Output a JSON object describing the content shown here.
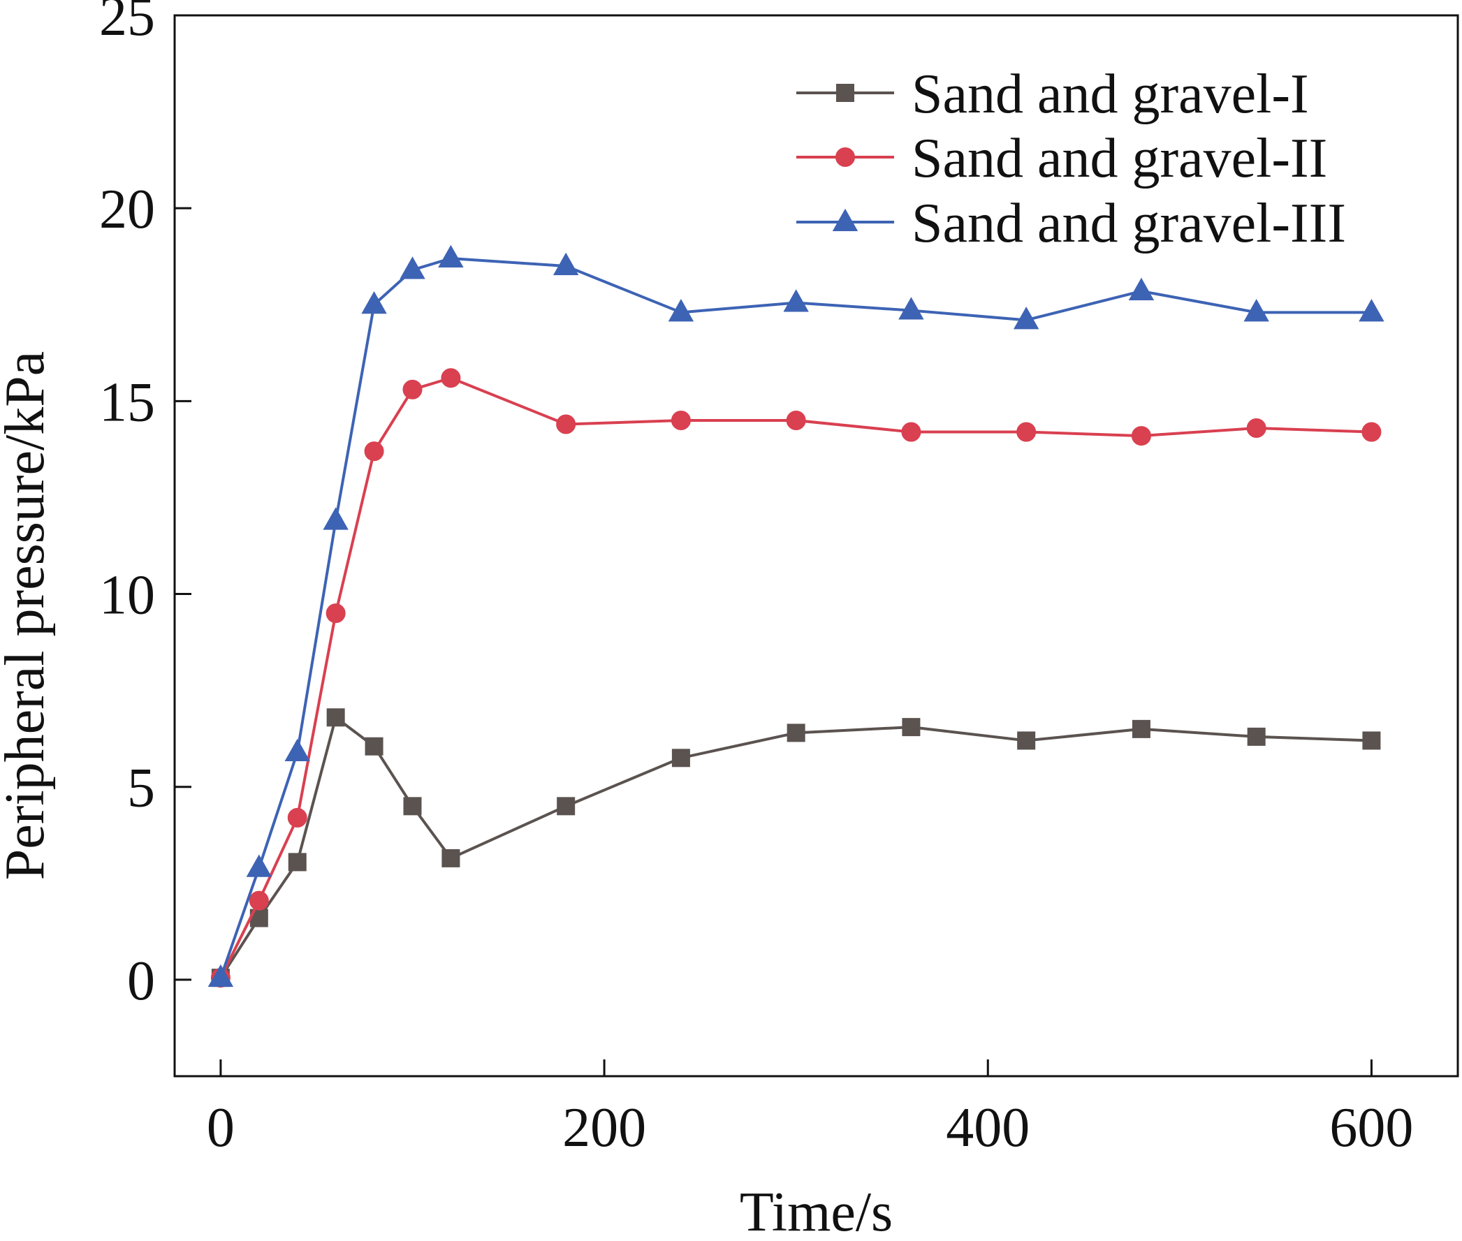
{
  "chart_data": {
    "type": "line",
    "title": "",
    "xlabel": "Time/s",
    "ylabel": "Peripheral pressure/kPa",
    "xlim": [
      -24,
      645
    ],
    "ylim": [
      -2.5,
      25
    ],
    "xticks": [
      0,
      200,
      400,
      600
    ],
    "xtick_labels": [
      "0",
      "200",
      "400",
      "600"
    ],
    "yticks": [
      0,
      5,
      10,
      15,
      20,
      25
    ],
    "ytick_labels": [
      "0",
      "5",
      "10",
      "15",
      "20",
      "25"
    ],
    "grid": false,
    "legend_position": "top-right",
    "series": [
      {
        "name": "Sand and gravel-I",
        "color": "#5b5350",
        "marker": "square",
        "x": [
          0,
          20,
          40,
          60,
          80,
          100,
          120,
          180,
          240,
          300,
          360,
          420,
          480,
          540,
          600
        ],
        "y": [
          0.05,
          1.6,
          3.05,
          6.8,
          6.05,
          4.5,
          3.15,
          4.5,
          5.75,
          6.4,
          6.55,
          6.2,
          6.5,
          6.3,
          6.2
        ]
      },
      {
        "name": "Sand and gravel-II",
        "color": "#d94050",
        "marker": "circle",
        "x": [
          0,
          20,
          40,
          60,
          80,
          100,
          120,
          180,
          240,
          300,
          360,
          420,
          480,
          540,
          600
        ],
        "y": [
          0.05,
          2.05,
          4.2,
          9.5,
          13.7,
          15.3,
          15.6,
          14.4,
          14.5,
          14.5,
          14.2,
          14.2,
          14.1,
          14.3,
          14.2
        ]
      },
      {
        "name": "Sand and gravel-III",
        "color": "#3d63b4",
        "marker": "triangle",
        "x": [
          0,
          20,
          40,
          60,
          80,
          100,
          120,
          180,
          240,
          300,
          360,
          420,
          480,
          540,
          600
        ],
        "y": [
          0.05,
          2.9,
          5.9,
          11.9,
          17.5,
          18.4,
          18.7,
          18.5,
          17.3,
          17.55,
          17.35,
          17.1,
          17.85,
          17.3,
          17.3
        ]
      }
    ]
  }
}
